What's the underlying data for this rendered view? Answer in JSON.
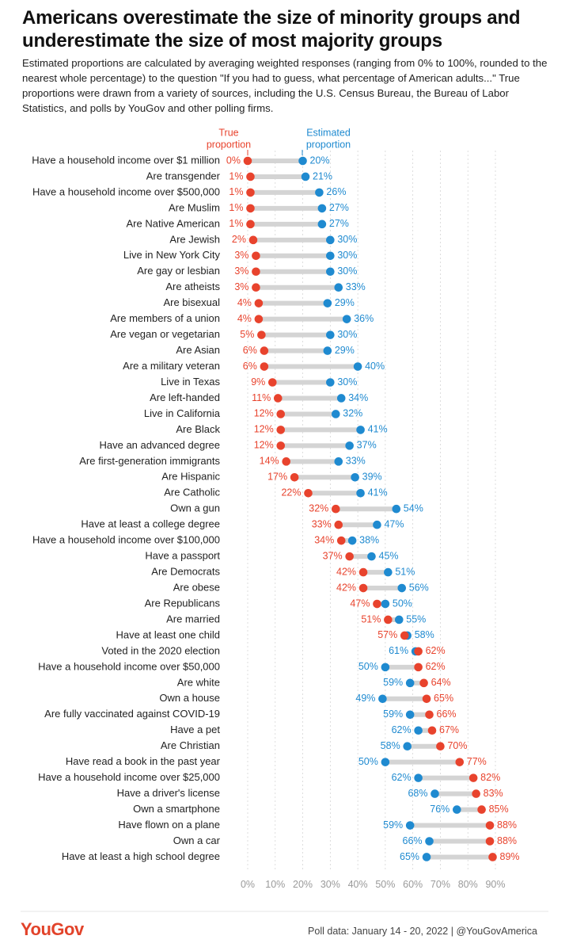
{
  "header": {
    "title": "Americans overestimate the size of minority groups and underestimate the size of most majority groups",
    "subtitle": "Estimated proportions are calculated by averaging weighted responses (ranging from 0% to 100%, rounded to the nearest whole percentage) to the question \"If you had to guess, what percentage of American adults...\" True proportions were drawn from a variety of sources, including the U.S. Census Bureau, the Bureau of Labor Statistics, and polls by YouGov and other polling firms."
  },
  "footer": {
    "brand": "YouGov",
    "note": "Poll data: January 14 - 20, 2022 | @YouGovAmerica"
  },
  "colors": {
    "true": "#e8432d",
    "estimated": "#1f8ad0",
    "connector": "#d4d4d4",
    "grid": "#cfcfcf",
    "tick": "#9a9a9a"
  },
  "chart_data": {
    "type": "dumbbell",
    "xlim": [
      0,
      90
    ],
    "ticks": [
      0,
      10,
      20,
      30,
      40,
      50,
      60,
      70,
      80,
      90
    ],
    "tick_labels": [
      "0%",
      "10%",
      "20%",
      "30%",
      "40%",
      "50%",
      "60%",
      "70%",
      "80%",
      "90%"
    ],
    "legend": {
      "true": "True proportion",
      "estimated": "Estimated proportion"
    },
    "series": [
      {
        "name": "True proportion"
      },
      {
        "name": "Estimated proportion"
      }
    ],
    "rows": [
      {
        "label": "Have a household income over $1 million",
        "true": 0,
        "estimated": 20
      },
      {
        "label": "Are transgender",
        "true": 1,
        "estimated": 21
      },
      {
        "label": "Have a household income over $500,000",
        "true": 1,
        "estimated": 26
      },
      {
        "label": "Are Muslim",
        "true": 1,
        "estimated": 27
      },
      {
        "label": "Are Native American",
        "true": 1,
        "estimated": 27
      },
      {
        "label": "Are Jewish",
        "true": 2,
        "estimated": 30
      },
      {
        "label": "Live in New York City",
        "true": 3,
        "estimated": 30
      },
      {
        "label": "Are gay or lesbian",
        "true": 3,
        "estimated": 30
      },
      {
        "label": "Are atheists",
        "true": 3,
        "estimated": 33
      },
      {
        "label": "Are bisexual",
        "true": 4,
        "estimated": 29
      },
      {
        "label": "Are members of a union",
        "true": 4,
        "estimated": 36
      },
      {
        "label": "Are vegan or vegetarian",
        "true": 5,
        "estimated": 30
      },
      {
        "label": "Are Asian",
        "true": 6,
        "estimated": 29
      },
      {
        "label": "Are a military veteran",
        "true": 6,
        "estimated": 40
      },
      {
        "label": "Live in Texas",
        "true": 9,
        "estimated": 30
      },
      {
        "label": "Are left-handed",
        "true": 11,
        "estimated": 34
      },
      {
        "label": "Live in California",
        "true": 12,
        "estimated": 32
      },
      {
        "label": "Are Black",
        "true": 12,
        "estimated": 41
      },
      {
        "label": "Have an advanced degree",
        "true": 12,
        "estimated": 37
      },
      {
        "label": "Are first-generation immigrants",
        "true": 14,
        "estimated": 33
      },
      {
        "label": "Are Hispanic",
        "true": 17,
        "estimated": 39
      },
      {
        "label": "Are Catholic",
        "true": 22,
        "estimated": 41
      },
      {
        "label": "Own a gun",
        "true": 32,
        "estimated": 54
      },
      {
        "label": "Have at least a college degree",
        "true": 33,
        "estimated": 47
      },
      {
        "label": "Have a household income over $100,000",
        "true": 34,
        "estimated": 38
      },
      {
        "label": "Have a passport",
        "true": 37,
        "estimated": 45
      },
      {
        "label": "Are Democrats",
        "true": 42,
        "estimated": 51
      },
      {
        "label": "Are obese",
        "true": 42,
        "estimated": 56
      },
      {
        "label": "Are Republicans",
        "true": 47,
        "estimated": 50
      },
      {
        "label": "Are married",
        "true": 51,
        "estimated": 55
      },
      {
        "label": "Have at least one child",
        "true": 57,
        "estimated": 58
      },
      {
        "label": "Voted in the 2020 election",
        "true": 62,
        "estimated": 61
      },
      {
        "label": "Have a household income over $50,000",
        "true": 62,
        "estimated": 50
      },
      {
        "label": "Are white",
        "true": 64,
        "estimated": 59
      },
      {
        "label": "Own a house",
        "true": 65,
        "estimated": 49
      },
      {
        "label": "Are fully vaccinated against COVID-19",
        "true": 66,
        "estimated": 59
      },
      {
        "label": "Have a pet",
        "true": 67,
        "estimated": 62
      },
      {
        "label": "Are Christian",
        "true": 70,
        "estimated": 58
      },
      {
        "label": "Have read a book in the past year",
        "true": 77,
        "estimated": 50
      },
      {
        "label": "Have a household income over $25,000",
        "true": 82,
        "estimated": 62
      },
      {
        "label": "Have a driver's license",
        "true": 83,
        "estimated": 68
      },
      {
        "label": "Own a smartphone",
        "true": 85,
        "estimated": 76
      },
      {
        "label": "Have flown on a plane",
        "true": 88,
        "estimated": 59
      },
      {
        "label": "Own a car",
        "true": 88,
        "estimated": 66
      },
      {
        "label": "Have at least a high school degree",
        "true": 89,
        "estimated": 65
      }
    ]
  }
}
